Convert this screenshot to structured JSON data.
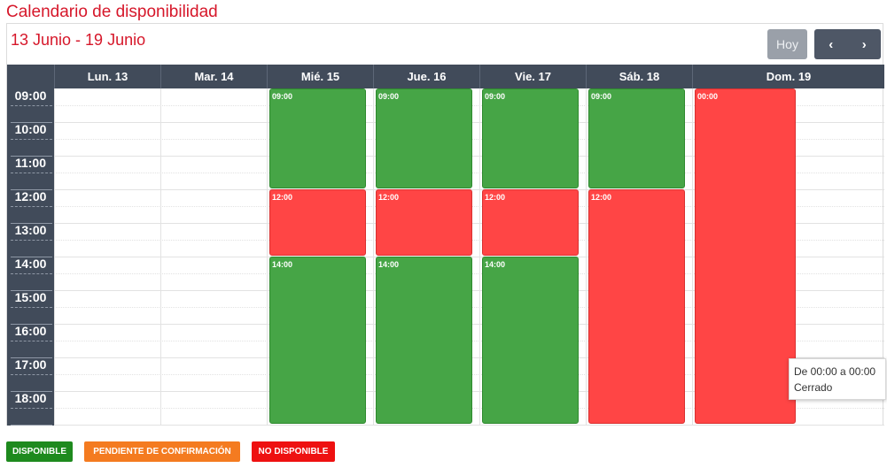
{
  "title": "Calendario de disponibilidad",
  "range": "13 Junio - 19 Junio",
  "buttons": {
    "today": "Hoy",
    "prev": "‹",
    "next": "›"
  },
  "days": [
    "Lun. 13",
    "Mar. 14",
    "Mié. 15",
    "Jue. 16",
    "Vie. 17",
    "Sáb. 18",
    "Dom. 19"
  ],
  "hours": [
    "09:00",
    "10:00",
    "11:00",
    "12:00",
    "13:00",
    "14:00",
    "15:00",
    "16:00",
    "17:00",
    "18:00"
  ],
  "events": [
    {
      "day": 2,
      "label": "09:00",
      "status": "green",
      "start": 9,
      "end": 12
    },
    {
      "day": 2,
      "label": "12:00",
      "status": "red",
      "start": 12,
      "end": 14
    },
    {
      "day": 2,
      "label": "14:00",
      "status": "green",
      "start": 14,
      "end": 19
    },
    {
      "day": 3,
      "label": "09:00",
      "status": "green",
      "start": 9,
      "end": 12
    },
    {
      "day": 3,
      "label": "12:00",
      "status": "red",
      "start": 12,
      "end": 14
    },
    {
      "day": 3,
      "label": "14:00",
      "status": "green",
      "start": 14,
      "end": 19
    },
    {
      "day": 4,
      "label": "09:00",
      "status": "green",
      "start": 9,
      "end": 12
    },
    {
      "day": 4,
      "label": "12:00",
      "status": "red",
      "start": 12,
      "end": 14
    },
    {
      "day": 4,
      "label": "14:00",
      "status": "green",
      "start": 14,
      "end": 19
    },
    {
      "day": 5,
      "label": "09:00",
      "status": "green",
      "start": 9,
      "end": 12
    },
    {
      "day": 5,
      "label": "12:00",
      "status": "red",
      "start": 12,
      "end": 19
    },
    {
      "day": 6,
      "label": "00:00",
      "status": "red",
      "start": 9,
      "end": 19
    }
  ],
  "tooltip": {
    "line1": "De 00:00 a 00:00",
    "line2": "Cerrado"
  },
  "legend": [
    {
      "label": "DISPONIBLE",
      "color": "#1e8a1e"
    },
    {
      "label": "PENDIENTE DE CONFIRMACIÓN",
      "color": "#f47b20"
    },
    {
      "label": "NO DISPONIBLE",
      "color": "#ee1111"
    }
  ]
}
